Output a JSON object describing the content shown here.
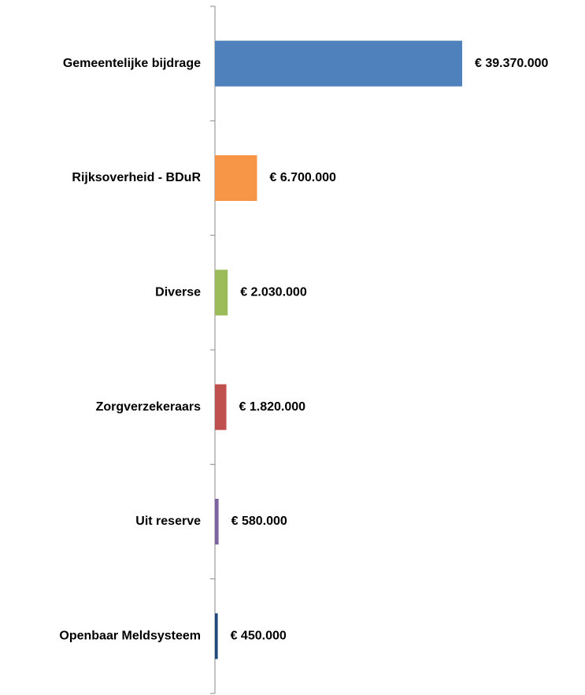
{
  "chart_data": {
    "type": "barh",
    "categories": [
      "Gemeentelijke bijdrage",
      "Rijksoverheid -  BDuR",
      "Diverse",
      "Zorgverzekeraars",
      "Uit reserve",
      "Openbaar Meldsysteem"
    ],
    "values": [
      39370000,
      6700000,
      2030000,
      1820000,
      580000,
      450000
    ],
    "value_labels": [
      "€ 39.370.000",
      "€ 6.700.000",
      "€ 2.030.000",
      "€ 1.820.000",
      "€ 580.000",
      "€ 450.000"
    ],
    "colors": [
      "#4f81bd",
      "#f79646",
      "#9bbb59",
      "#c0504d",
      "#8064a2",
      "#1f497d"
    ]
  }
}
